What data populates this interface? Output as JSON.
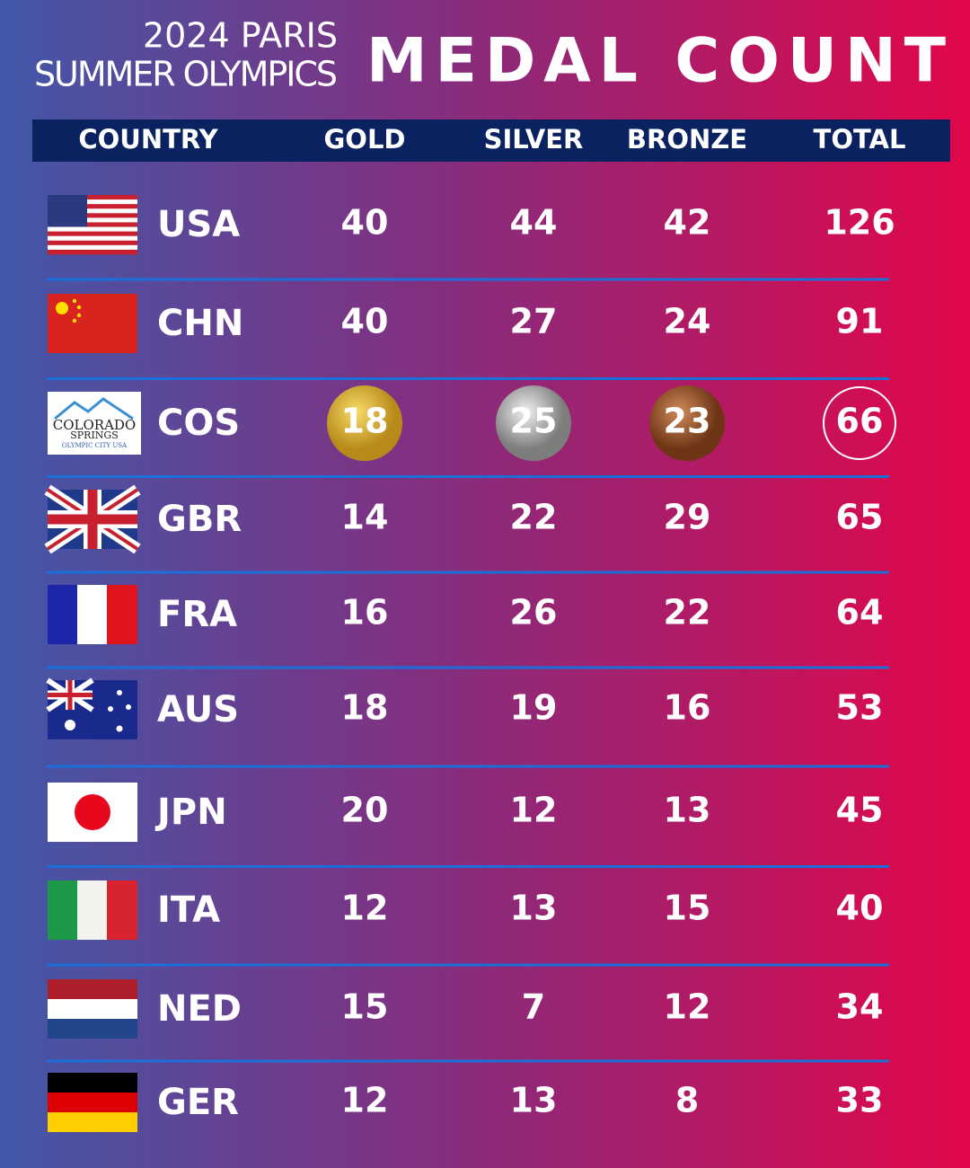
{
  "header": {
    "subtitle": [
      "2024 PARIS",
      "SUMMER OLYMPICS"
    ],
    "title": "MEDAL COUNT"
  },
  "table": {
    "columns": [
      "COUNTRY",
      "GOLD",
      "SILVER",
      "BRONZE",
      "TOTAL"
    ],
    "rows": [
      [
        "USA",
        40,
        44,
        42,
        126
      ],
      [
        "CHN",
        40,
        27,
        24,
        91
      ],
      [
        "COS",
        18,
        25,
        23,
        66
      ],
      [
        "GBR",
        14,
        22,
        29,
        65
      ],
      [
        "FRA",
        16,
        26,
        22,
        64
      ],
      [
        "AUS",
        18,
        19,
        16,
        53
      ],
      [
        "JPN",
        20,
        12,
        13,
        45
      ],
      [
        "ITA",
        12,
        13,
        15,
        40
      ],
      [
        "NED",
        15,
        7,
        12,
        34
      ],
      [
        "GER",
        12,
        13,
        8,
        33
      ]
    ]
  },
  "logo": {
    "lines": [
      "COLORADO",
      "SPRINGS",
      "OLYMPIC CITY USA"
    ]
  }
}
